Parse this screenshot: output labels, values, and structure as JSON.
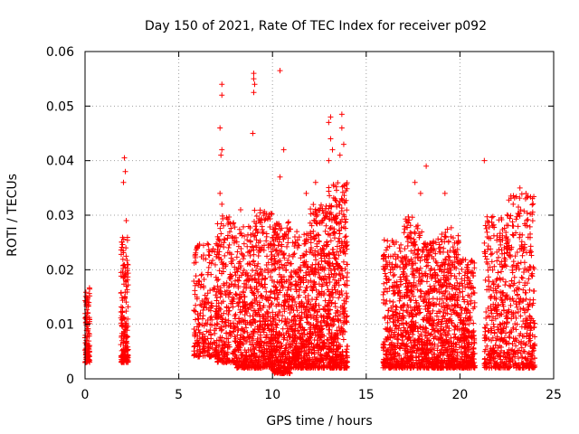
{
  "chart_data": {
    "type": "scatter",
    "title": "Day 150 of 2021, Rate Of TEC Index for receiver p092",
    "xlabel": "GPS time / hours",
    "ylabel": "ROTI / TECUs",
    "xlim": [
      0,
      25
    ],
    "ylim": [
      0,
      0.06
    ],
    "x_ticks": [
      "0",
      "5",
      "10",
      "15",
      "20",
      "25"
    ],
    "y_ticks": [
      "0",
      "0.01",
      "0.02",
      "0.03",
      "0.04",
      "0.05",
      "0.06"
    ],
    "grid": true,
    "marker": "+",
    "color": "#ff0000",
    "clusters": [
      {
        "x_range": [
          0.0,
          0.25
        ],
        "y_range": [
          0.003,
          0.017
        ],
        "density": 110
      },
      {
        "x_range": [
          1.9,
          2.3
        ],
        "y_range": [
          0.003,
          0.026
        ],
        "density": 170
      },
      {
        "x_range": [
          5.8,
          7.0
        ],
        "y_range": [
          0.004,
          0.025
        ],
        "density": 220
      },
      {
        "x_range": [
          7.0,
          8.0
        ],
        "y_range": [
          0.003,
          0.03
        ],
        "density": 260
      },
      {
        "x_range": [
          8.0,
          9.0
        ],
        "y_range": [
          0.002,
          0.028
        ],
        "density": 300
      },
      {
        "x_range": [
          9.0,
          10.0
        ],
        "y_range": [
          0.002,
          0.031
        ],
        "density": 360
      },
      {
        "x_range": [
          10.0,
          11.0
        ],
        "y_range": [
          0.001,
          0.029
        ],
        "density": 380
      },
      {
        "x_range": [
          11.0,
          12.0
        ],
        "y_range": [
          0.002,
          0.027
        ],
        "density": 360
      },
      {
        "x_range": [
          12.0,
          13.0
        ],
        "y_range": [
          0.002,
          0.032
        ],
        "density": 380
      },
      {
        "x_range": [
          13.0,
          14.0
        ],
        "y_range": [
          0.002,
          0.036
        ],
        "density": 420
      },
      {
        "x_range": [
          15.9,
          17.0
        ],
        "y_range": [
          0.002,
          0.026
        ],
        "density": 320
      },
      {
        "x_range": [
          17.0,
          18.0
        ],
        "y_range": [
          0.002,
          0.03
        ],
        "density": 340
      },
      {
        "x_range": [
          18.0,
          19.0
        ],
        "y_range": [
          0.002,
          0.026
        ],
        "density": 340
      },
      {
        "x_range": [
          19.0,
          20.0
        ],
        "y_range": [
          0.002,
          0.028
        ],
        "density": 340
      },
      {
        "x_range": [
          20.0,
          20.8
        ],
        "y_range": [
          0.002,
          0.022
        ],
        "density": 260
      },
      {
        "x_range": [
          21.3,
          22.5
        ],
        "y_range": [
          0.002,
          0.03
        ],
        "density": 320
      },
      {
        "x_range": [
          22.5,
          24.0
        ],
        "y_range": [
          0.002,
          0.034
        ],
        "density": 380
      }
    ],
    "outliers": [
      [
        2.1,
        0.0405
      ],
      [
        2.15,
        0.038
      ],
      [
        2.05,
        0.036
      ],
      [
        2.2,
        0.029
      ],
      [
        7.3,
        0.054
      ],
      [
        7.3,
        0.052
      ],
      [
        7.2,
        0.046
      ],
      [
        7.3,
        0.042
      ],
      [
        7.25,
        0.041
      ],
      [
        7.2,
        0.034
      ],
      [
        7.3,
        0.032
      ],
      [
        8.3,
        0.031
      ],
      [
        9.0,
        0.056
      ],
      [
        9.0,
        0.055
      ],
      [
        9.05,
        0.054
      ],
      [
        9.0,
        0.0525
      ],
      [
        8.95,
        0.045
      ],
      [
        10.4,
        0.0565
      ],
      [
        10.6,
        0.042
      ],
      [
        10.4,
        0.037
      ],
      [
        11.8,
        0.034
      ],
      [
        12.3,
        0.036
      ],
      [
        13.1,
        0.048
      ],
      [
        13.0,
        0.047
      ],
      [
        13.1,
        0.044
      ],
      [
        13.2,
        0.042
      ],
      [
        13.0,
        0.04
      ],
      [
        13.7,
        0.0485
      ],
      [
        13.7,
        0.046
      ],
      [
        13.8,
        0.043
      ],
      [
        13.6,
        0.041
      ],
      [
        17.6,
        0.036
      ],
      [
        18.2,
        0.039
      ],
      [
        17.9,
        0.034
      ],
      [
        19.2,
        0.034
      ],
      [
        21.3,
        0.04
      ],
      [
        23.2,
        0.035
      ],
      [
        23.5,
        0.033
      ]
    ]
  }
}
